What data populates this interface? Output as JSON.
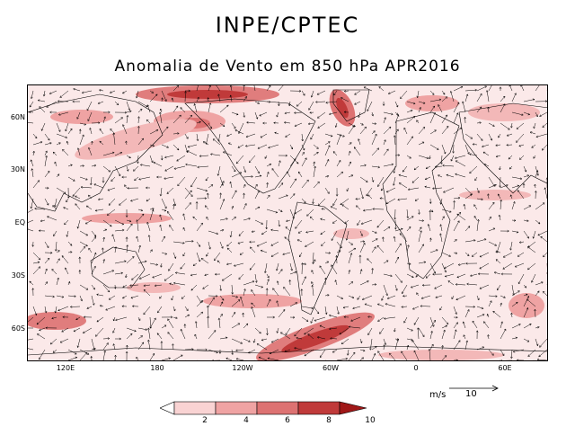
{
  "header": {
    "title": "INPE/CPTEC",
    "subtitle": "Anomalia de Vento em 850 hPa APR2016"
  },
  "map": {
    "lat_labels": [
      "60N",
      "30N",
      "EQ",
      "30S",
      "60S"
    ],
    "lon_labels": [
      "120E",
      "180",
      "120W",
      "60W",
      "0",
      "60E"
    ]
  },
  "legend": {
    "labels": [
      "2",
      "4",
      "6",
      "8",
      "10"
    ],
    "colors": [
      "#ffffff",
      "#f9d3d3",
      "#efa3a3",
      "#dd7272",
      "#c03a3a",
      "#a01818"
    ]
  },
  "reference_vector": {
    "unit": "m/s",
    "value": "10"
  }
}
